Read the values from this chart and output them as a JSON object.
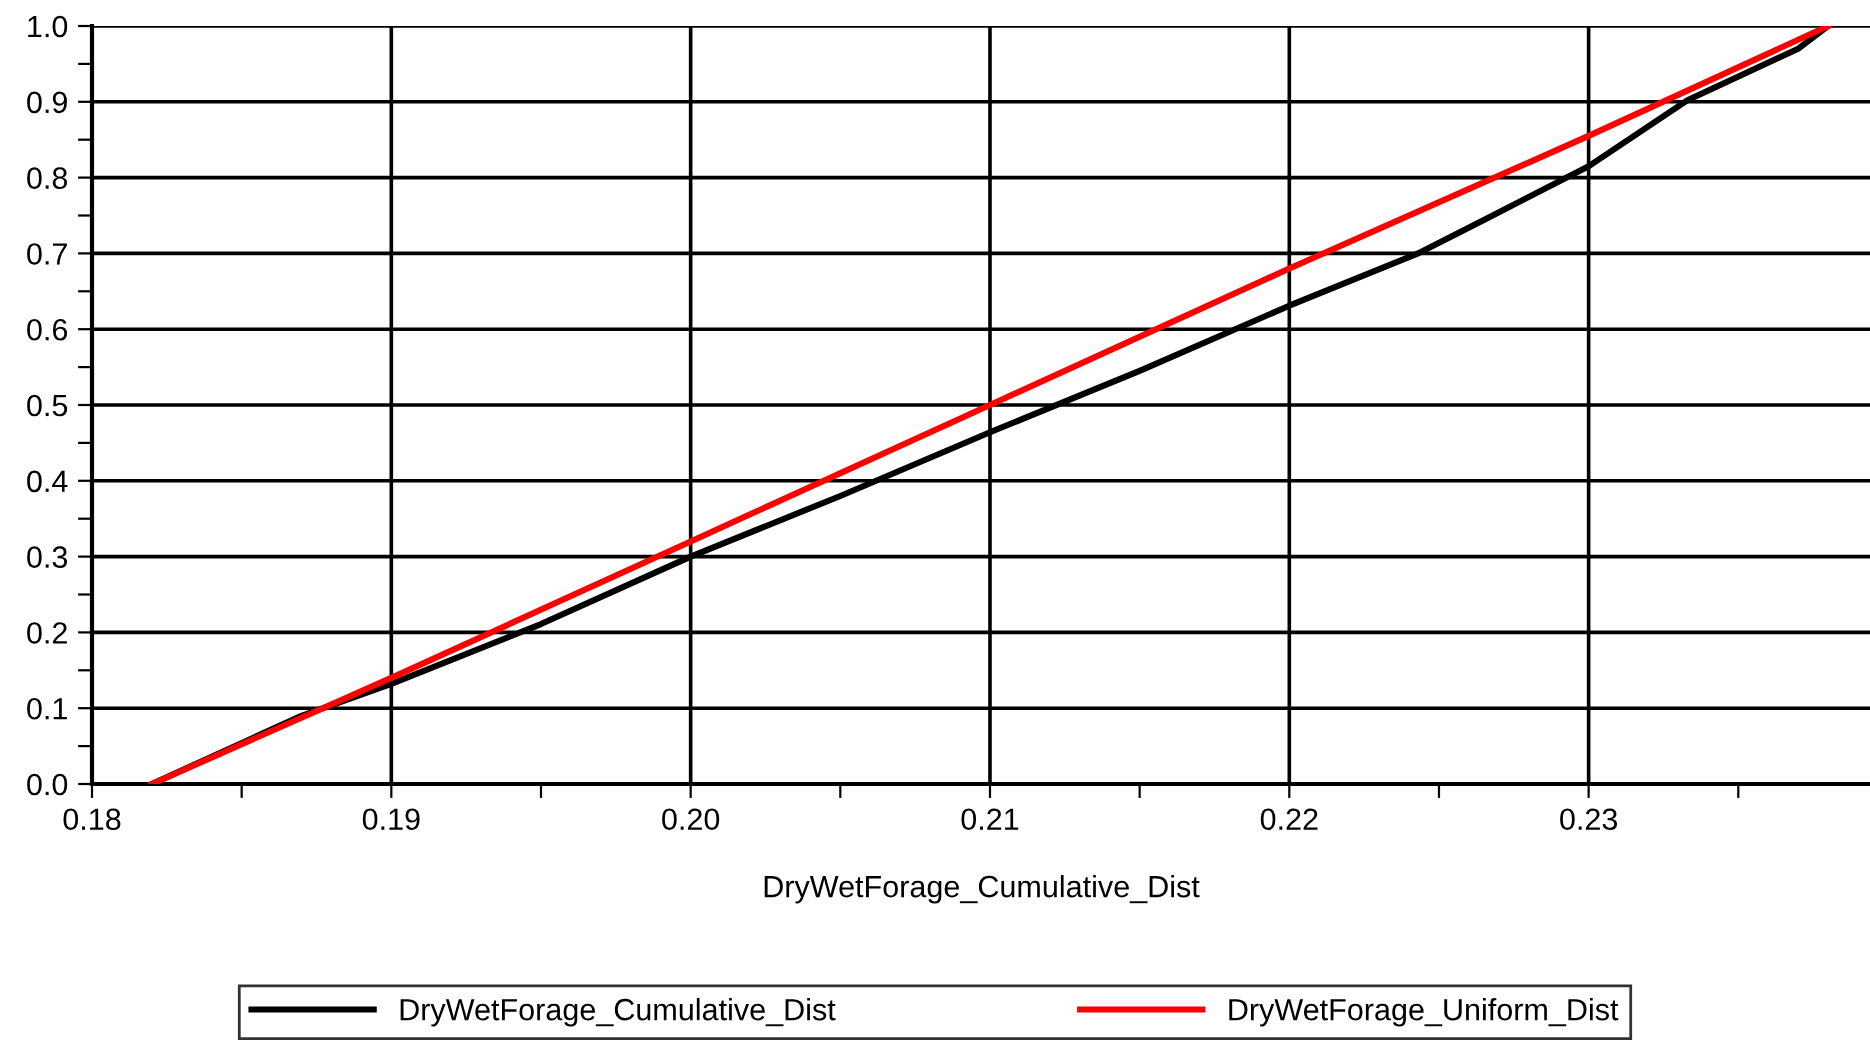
{
  "chart_data": {
    "type": "line",
    "xlabel": "DryWetForage_Cumulative_Dist",
    "xlim": [
      0.18,
      0.2394
    ],
    "ylim": [
      0,
      1.0
    ],
    "xticks": [
      0.18,
      {
        "value": 0.185,
        "label": null
      },
      0.19,
      {
        "value": 0.195,
        "label": null
      },
      {
        "value": 0.2,
        "label": "0.20"
      },
      {
        "value": 0.205,
        "label": null
      },
      0.21,
      {
        "value": 0.215,
        "label": null
      },
      0.22,
      {
        "value": 0.225,
        "label": null
      },
      0.23,
      {
        "value": 0.235,
        "label": null
      }
    ],
    "yticks": [
      {
        "value": 0,
        "label": "0.0"
      },
      {
        "value": 0.05,
        "label": null
      },
      0.1,
      {
        "value": 0.15,
        "label": null
      },
      0.2,
      {
        "value": 0.25,
        "label": null
      },
      0.3,
      {
        "value": 0.35,
        "label": null
      },
      0.4,
      {
        "value": 0.45,
        "label": null
      },
      0.5,
      {
        "value": 0.55,
        "label": null
      },
      0.6,
      {
        "value": 0.65,
        "label": null
      },
      0.7,
      {
        "value": 0.75,
        "label": null
      },
      0.8,
      {
        "value": 0.85,
        "label": null
      },
      0.9,
      {
        "value": 0.95,
        "label": null
      },
      {
        "value": 1,
        "label": "1.0"
      }
    ],
    "grid": true,
    "legend": "bottom",
    "marker": "none",
    "line_style": "solid",
    "series": [
      {
        "name": "DryWetForage_Cumulative_Dist",
        "color": "#000000",
        "x": [
          0.182,
          0.187,
          0.19,
          0.195,
          0.2,
          0.205,
          0.21,
          0.215,
          0.22,
          0.2243,
          0.2265,
          0.23,
          0.2333,
          0.237,
          0.238
        ],
        "values": [
          0,
          0.09,
          0.132,
          0.211,
          0.3,
          0.38,
          0.464,
          0.545,
          0.631,
          0.7,
          0.744,
          0.815,
          0.902,
          0.97,
          1.0
        ]
      },
      {
        "name": "DryWetForage_Uniform_Dist",
        "color": "#ff0000",
        "x": [
          0.182,
          0.19,
          0.2,
          0.21,
          0.22,
          0.23,
          0.238
        ],
        "values": [
          0,
          0.14,
          0.32,
          0.5,
          0.68,
          0.855,
          1.0
        ]
      }
    ]
  }
}
